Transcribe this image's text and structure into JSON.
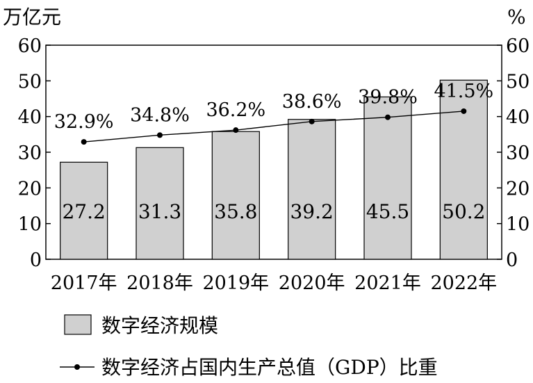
{
  "chart_data": {
    "type": "bar+line",
    "categories": [
      "2017年",
      "2018年",
      "2019年",
      "2020年",
      "2021年",
      "2022年"
    ],
    "series": [
      {
        "name": "数字经济规模",
        "type": "bar",
        "axis": "left",
        "values": [
          27.2,
          31.3,
          35.8,
          39.2,
          45.5,
          50.2
        ],
        "labels": [
          "27.2",
          "31.3",
          "35.8",
          "39.2",
          "45.5",
          "50.2"
        ],
        "color": "#d0d0d0"
      },
      {
        "name": "数字经济占国内生产总值（GDP）比重",
        "type": "line",
        "axis": "right",
        "values": [
          32.9,
          34.8,
          36.2,
          38.6,
          39.8,
          41.5
        ],
        "labels": [
          "32.9%",
          "34.8%",
          "36.2%",
          "38.6%",
          "39.8%",
          "41.5%"
        ],
        "color": "#000000"
      }
    ],
    "y_left": {
      "unit": "万亿元",
      "range": [
        0,
        60
      ],
      "ticks": [
        "0",
        "10",
        "20",
        "30",
        "40",
        "50",
        "60"
      ]
    },
    "y_right": {
      "unit": "%",
      "range": [
        0,
        60
      ],
      "ticks": [
        "0",
        "10",
        "20",
        "30",
        "40",
        "50",
        "60"
      ]
    },
    "grid": false,
    "legend_position": "bottom"
  }
}
